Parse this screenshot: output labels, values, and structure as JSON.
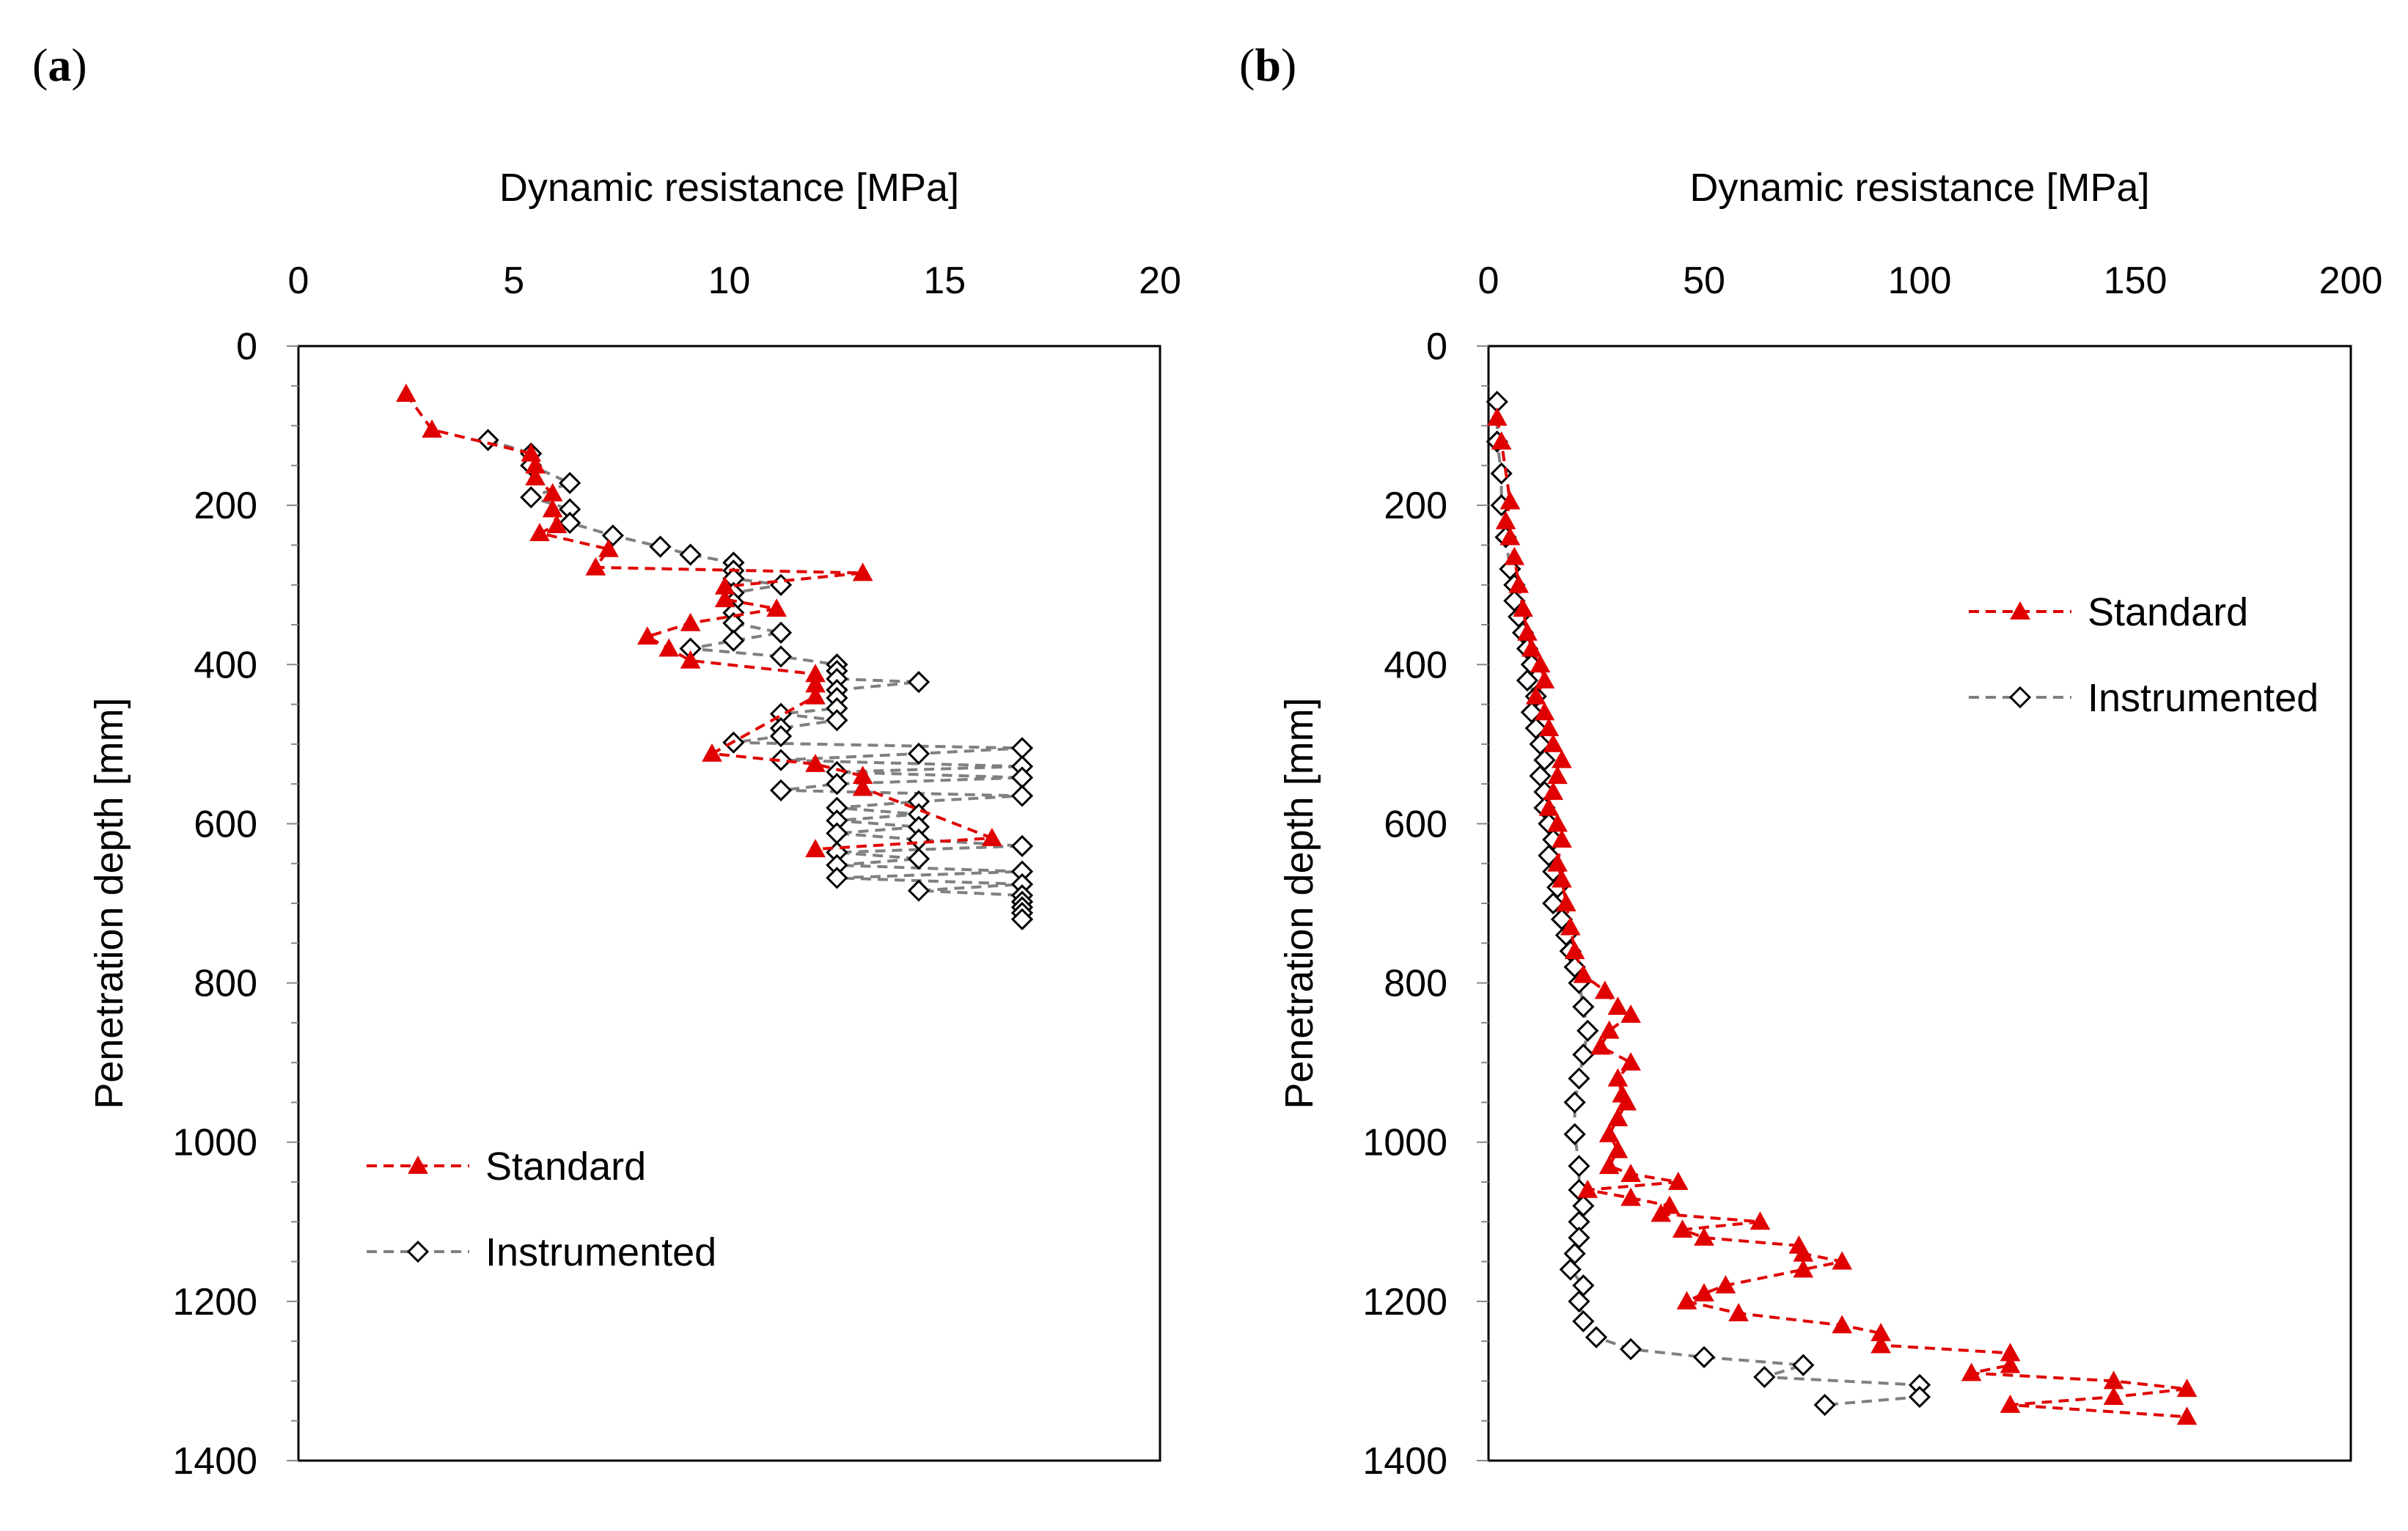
{
  "chart_data": [
    {
      "panel": "(a)",
      "type": "line",
      "xlabel": "Dynamic resistance [MPa]",
      "ylabel": "Penetration depth [mm]",
      "xlim": [
        0,
        20
      ],
      "ylim": [
        0,
        1400
      ],
      "x_ticks": [
        0,
        5,
        10,
        15,
        20
      ],
      "y_ticks": [
        0,
        200,
        400,
        600,
        800,
        1000,
        1200,
        1400
      ],
      "x_axis_position": "top",
      "y_axis_inverted": true,
      "grid": false,
      "legend_position": "bottom-left",
      "series": [
        {
          "name": "Standard",
          "color": "#e00000",
          "marker": "triangle",
          "line": "dashed",
          "points": [
            [
              2.5,
              60
            ],
            [
              3.1,
              105
            ],
            [
              5.4,
              135
            ],
            [
              5.5,
              150
            ],
            [
              5.5,
              165
            ],
            [
              5.9,
              185
            ],
            [
              5.9,
              205
            ],
            [
              6.0,
              225
            ],
            [
              5.6,
              235
            ],
            [
              7.2,
              255
            ],
            [
              6.9,
              278
            ],
            [
              13.1,
              285
            ],
            [
              9.9,
              302
            ],
            [
              9.9,
              318
            ],
            [
              11.1,
              330
            ],
            [
              9.1,
              348
            ],
            [
              8.1,
              365
            ],
            [
              8.6,
              380
            ],
            [
              9.1,
              395
            ],
            [
              12.0,
              412
            ],
            [
              12.0,
              425
            ],
            [
              12.0,
              440
            ],
            [
              9.6,
              512
            ],
            [
              12.0,
              525
            ],
            [
              13.1,
              540
            ],
            [
              13.1,
              555
            ],
            [
              16.1,
              618
            ],
            [
              12.0,
              632
            ]
          ]
        },
        {
          "name": "Instrumented",
          "color": "#808080",
          "marker": "diamond-open",
          "line": "dashed",
          "points": [
            [
              4.4,
              118
            ],
            [
              5.4,
              135
            ],
            [
              5.4,
              150
            ],
            [
              6.3,
              172
            ],
            [
              5.4,
              190
            ],
            [
              6.3,
              205
            ],
            [
              6.3,
              222
            ],
            [
              7.3,
              238
            ],
            [
              8.4,
              252
            ],
            [
              9.1,
              262
            ],
            [
              10.1,
              272
            ],
            [
              10.1,
              282
            ],
            [
              10.1,
              292
            ],
            [
              11.2,
              300
            ],
            [
              10.1,
              310
            ],
            [
              10.1,
              322
            ],
            [
              10.1,
              335
            ],
            [
              10.1,
              348
            ],
            [
              11.2,
              360
            ],
            [
              10.1,
              370
            ],
            [
              9.1,
              380
            ],
            [
              11.2,
              390
            ],
            [
              12.5,
              400
            ],
            [
              12.5,
              408
            ],
            [
              12.5,
              418
            ],
            [
              14.4,
              422
            ],
            [
              12.5,
              432
            ],
            [
              12.5,
              442
            ],
            [
              12.5,
              455
            ],
            [
              11.2,
              462
            ],
            [
              12.5,
              470
            ],
            [
              11.2,
              480
            ],
            [
              11.2,
              490
            ],
            [
              10.1,
              498
            ],
            [
              16.8,
              505
            ],
            [
              14.4,
              512
            ],
            [
              11.2,
              520
            ],
            [
              16.8,
              528
            ],
            [
              12.5,
              535
            ],
            [
              16.8,
              542
            ],
            [
              12.5,
              550
            ],
            [
              11.2,
              558
            ],
            [
              16.8,
              565
            ],
            [
              14.4,
              572
            ],
            [
              12.5,
              580
            ],
            [
              14.4,
              588
            ],
            [
              12.5,
              596
            ],
            [
              14.4,
              604
            ],
            [
              12.5,
              612
            ],
            [
              14.4,
              620
            ],
            [
              16.8,
              628
            ],
            [
              12.5,
              636
            ],
            [
              14.4,
              644
            ],
            [
              12.5,
              652
            ],
            [
              16.8,
              660
            ],
            [
              12.5,
              668
            ],
            [
              16.8,
              676
            ],
            [
              14.4,
              684
            ],
            [
              16.8,
              690
            ],
            [
              16.8,
              698
            ],
            [
              16.8,
              705
            ],
            [
              16.8,
              712
            ],
            [
              16.8,
              720
            ]
          ]
        }
      ]
    },
    {
      "panel": "(b)",
      "type": "line",
      "xlabel": "Dynamic resistance [MPa]",
      "ylabel": "Penetration depth [mm]",
      "xlim": [
        0,
        200
      ],
      "ylim": [
        0,
        1400
      ],
      "x_ticks": [
        0,
        50,
        100,
        150,
        200
      ],
      "y_ticks": [
        0,
        200,
        400,
        600,
        800,
        1000,
        1200,
        1400
      ],
      "x_axis_position": "top",
      "y_axis_inverted": true,
      "grid": false,
      "legend_position": "top-right",
      "series": [
        {
          "name": "Standard",
          "color": "#e00000",
          "marker": "triangle",
          "line": "dashed",
          "points": [
            [
              2,
              90
            ],
            [
              3,
              120
            ],
            [
              5,
              195
            ],
            [
              4,
              220
            ],
            [
              5,
              240
            ],
            [
              6,
              265
            ],
            [
              7,
              300
            ],
            [
              8,
              330
            ],
            [
              9,
              360
            ],
            [
              10,
              380
            ],
            [
              12,
              400
            ],
            [
              13,
              420
            ],
            [
              11,
              440
            ],
            [
              13,
              460
            ],
            [
              14,
              480
            ],
            [
              15,
              500
            ],
            [
              17,
              520
            ],
            [
              16,
              540
            ],
            [
              15,
              560
            ],
            [
              14,
              580
            ],
            [
              16,
              600
            ],
            [
              17,
              620
            ],
            [
              16,
              650
            ],
            [
              17,
              670
            ],
            [
              18,
              700
            ],
            [
              19,
              730
            ],
            [
              20,
              760
            ],
            [
              22,
              790
            ],
            [
              27,
              810
            ],
            [
              30,
              830
            ],
            [
              33,
              840
            ],
            [
              28,
              860
            ],
            [
              26,
              880
            ],
            [
              33,
              900
            ],
            [
              30,
              920
            ],
            [
              31,
              940
            ],
            [
              32,
              950
            ],
            [
              30,
              970
            ],
            [
              28,
              990
            ],
            [
              30,
              1010
            ],
            [
              28,
              1030
            ],
            [
              33,
              1040
            ],
            [
              44,
              1050
            ],
            [
              23,
              1060
            ],
            [
              33,
              1070
            ],
            [
              42,
              1080
            ],
            [
              40,
              1090
            ],
            [
              63,
              1100
            ],
            [
              45,
              1110
            ],
            [
              50,
              1120
            ],
            [
              72,
              1130
            ],
            [
              73,
              1140
            ],
            [
              82,
              1150
            ],
            [
              73,
              1160
            ],
            [
              55,
              1180
            ],
            [
              50,
              1190
            ],
            [
              46,
              1200
            ],
            [
              58,
              1215
            ],
            [
              82,
              1230
            ],
            [
              91,
              1240
            ],
            [
              91,
              1255
            ],
            [
              121,
              1265
            ],
            [
              121,
              1280
            ],
            [
              112,
              1290
            ],
            [
              145,
              1300
            ],
            [
              162,
              1310
            ],
            [
              145,
              1320
            ],
            [
              121,
              1330
            ],
            [
              162,
              1345
            ]
          ]
        },
        {
          "name": "Instrumented",
          "color": "#808080",
          "marker": "diamond-open",
          "line": "dashed",
          "points": [
            [
              2,
              70
            ],
            [
              2,
              120
            ],
            [
              3,
              160
            ],
            [
              3,
              200
            ],
            [
              4,
              240
            ],
            [
              5,
              280
            ],
            [
              6,
              300
            ],
            [
              6,
              320
            ],
            [
              7,
              340
            ],
            [
              8,
              360
            ],
            [
              9,
              380
            ],
            [
              10,
              400
            ],
            [
              9,
              420
            ],
            [
              11,
              440
            ],
            [
              10,
              460
            ],
            [
              11,
              480
            ],
            [
              12,
              500
            ],
            [
              13,
              520
            ],
            [
              12,
              540
            ],
            [
              13,
              560
            ],
            [
              13,
              580
            ],
            [
              14,
              600
            ],
            [
              15,
              620
            ],
            [
              14,
              640
            ],
            [
              15,
              660
            ],
            [
              16,
              680
            ],
            [
              15,
              700
            ],
            [
              17,
              720
            ],
            [
              18,
              740
            ],
            [
              19,
              760
            ],
            [
              20,
              780
            ],
            [
              21,
              800
            ],
            [
              22,
              830
            ],
            [
              23,
              860
            ],
            [
              22,
              890
            ],
            [
              21,
              920
            ],
            [
              20,
              950
            ],
            [
              20,
              990
            ],
            [
              21,
              1030
            ],
            [
              21,
              1060
            ],
            [
              22,
              1080
            ],
            [
              21,
              1100
            ],
            [
              21,
              1120
            ],
            [
              20,
              1140
            ],
            [
              19,
              1160
            ],
            [
              22,
              1180
            ],
            [
              21,
              1200
            ],
            [
              22,
              1225
            ],
            [
              25,
              1245
            ],
            [
              33,
              1260
            ],
            [
              50,
              1270
            ],
            [
              73,
              1280
            ],
            [
              64,
              1295
            ],
            [
              100,
              1305
            ],
            [
              100,
              1320
            ],
            [
              78,
              1330
            ]
          ]
        }
      ]
    }
  ]
}
